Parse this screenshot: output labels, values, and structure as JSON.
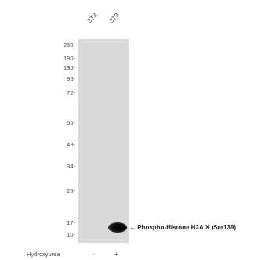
{
  "lanes": [
    {
      "label": "3T3",
      "hydroxyurea": "-"
    },
    {
      "label": "3T3",
      "hydroxyurea": "+"
    }
  ],
  "markers": [
    "250-",
    "180-",
    "130-",
    "95-",
    "72-",
    "55-",
    "43-",
    "34-",
    "26-",
    "17-",
    "10-"
  ],
  "band": {
    "annotation": "← Phospho-Histone H2A.X (Ser139)",
    "lane": 2
  },
  "treatment": {
    "label": "Hydroxyurea"
  },
  "colors": {
    "membrane": "#d9d9d9",
    "band": "#000000"
  }
}
